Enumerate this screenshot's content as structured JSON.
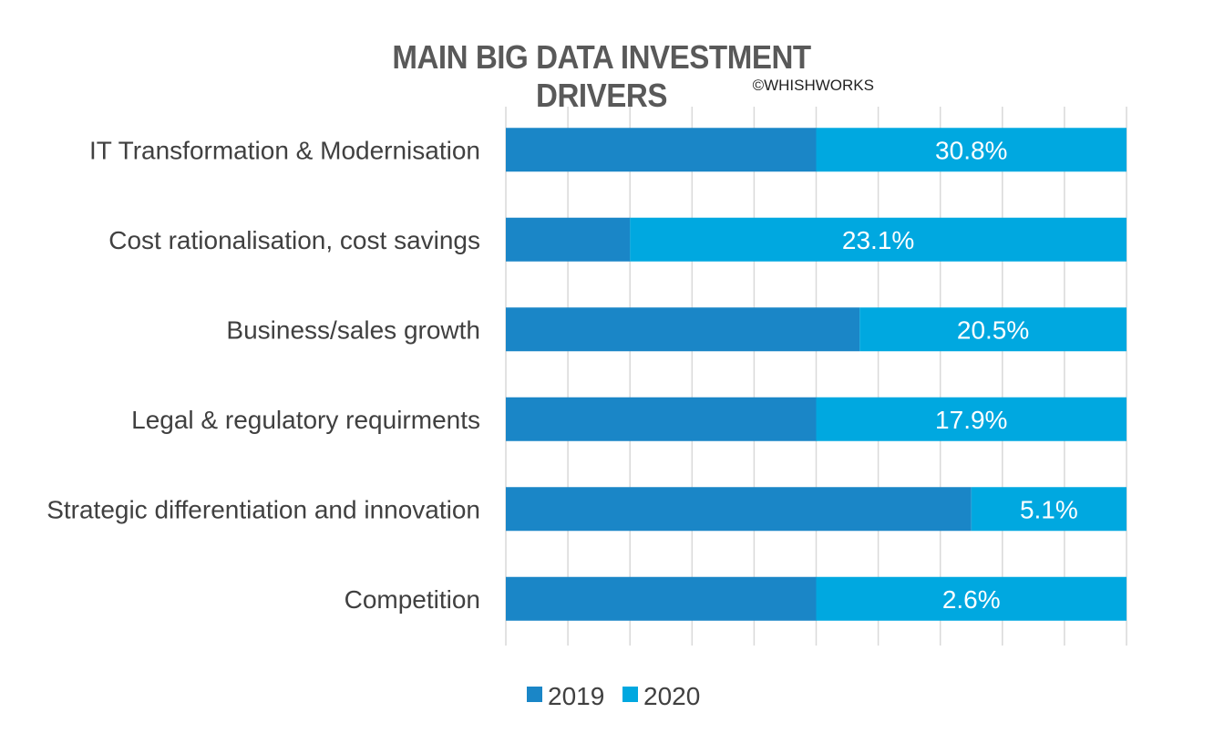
{
  "chart_data": {
    "type": "bar",
    "orientation": "horizontal",
    "stacked": "percent",
    "title": "MAIN BIG DATA INVESTMENT DRIVERS",
    "subtitle": "©WHISHWORKS",
    "categories": [
      "IT Transformation & Modernisation",
      "Cost rationalisation, cost savings",
      "Business/sales growth",
      "Legal & regulatory requirments",
      "Strategic differentiation and innovation",
      "Competition"
    ],
    "series": [
      {
        "name": "2019",
        "color": "#1a86c7",
        "share": [
          50,
          20,
          57,
          50,
          75,
          50
        ]
      },
      {
        "name": "2020",
        "color": "#00a8e0",
        "share": [
          50,
          80,
          43,
          50,
          25,
          50
        ],
        "labels": [
          "30.8%",
          "23.1%",
          "20.5%",
          "17.9%",
          "5.1%",
          "2.6%"
        ]
      }
    ],
    "xlim": [
      0,
      100
    ],
    "grid": true,
    "legend": "bottom"
  }
}
